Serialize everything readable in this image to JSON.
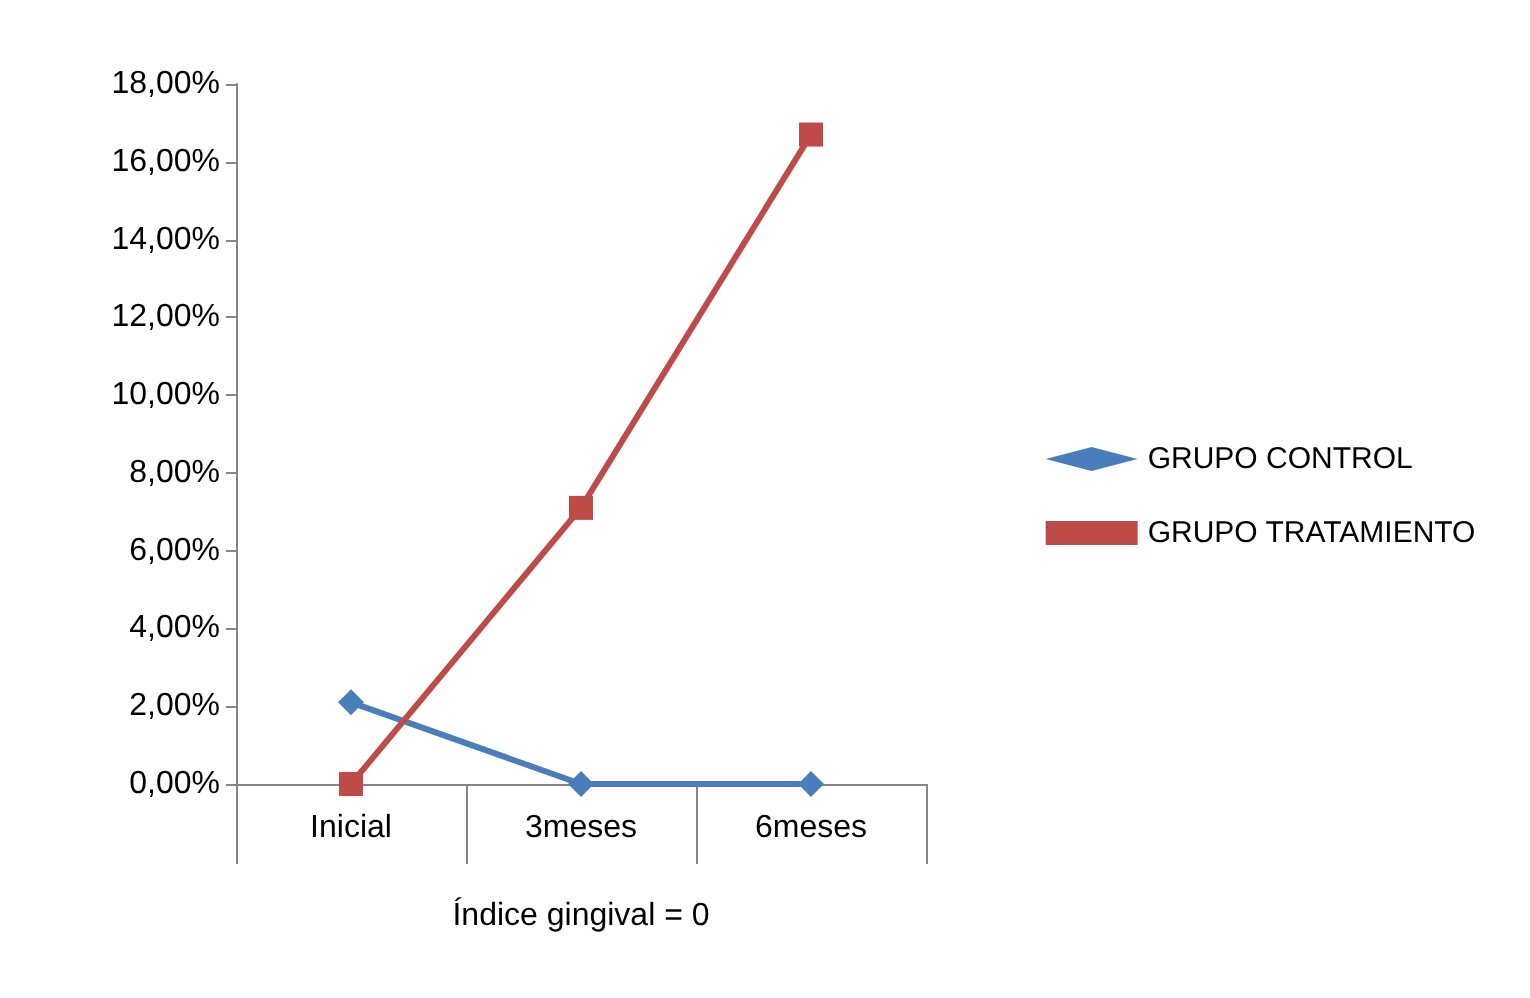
{
  "chart_data": {
    "type": "line",
    "xlabel": "Índice gingival = 0",
    "categories": [
      "Inicial",
      "3meses",
      "6meses"
    ],
    "series": [
      {
        "name": "GRUPO CONTROL",
        "color": "#4a7ebb",
        "marker": "diamond",
        "values": [
          2.1,
          0,
          0
        ]
      },
      {
        "name": "GRUPO TRATAMIENTO",
        "color": "#be4b48",
        "marker": "square",
        "values": [
          0,
          7.1,
          16.7
        ]
      }
    ],
    "ylim": [
      0,
      18
    ],
    "yticks": [
      {
        "value": 0,
        "label": "0,00%"
      },
      {
        "value": 2,
        "label": "2,00%"
      },
      {
        "value": 4,
        "label": "4,00%"
      },
      {
        "value": 6,
        "label": "6,00%"
      },
      {
        "value": 8,
        "label": "8,00%"
      },
      {
        "value": 10,
        "label": "10,00%"
      },
      {
        "value": 12,
        "label": "12,00%"
      },
      {
        "value": 14,
        "label": "14,00%"
      },
      {
        "value": 16,
        "label": "16,00%"
      },
      {
        "value": 18,
        "label": "18,00%"
      }
    ],
    "grid": false,
    "legend": "right",
    "line_style": "solid"
  }
}
